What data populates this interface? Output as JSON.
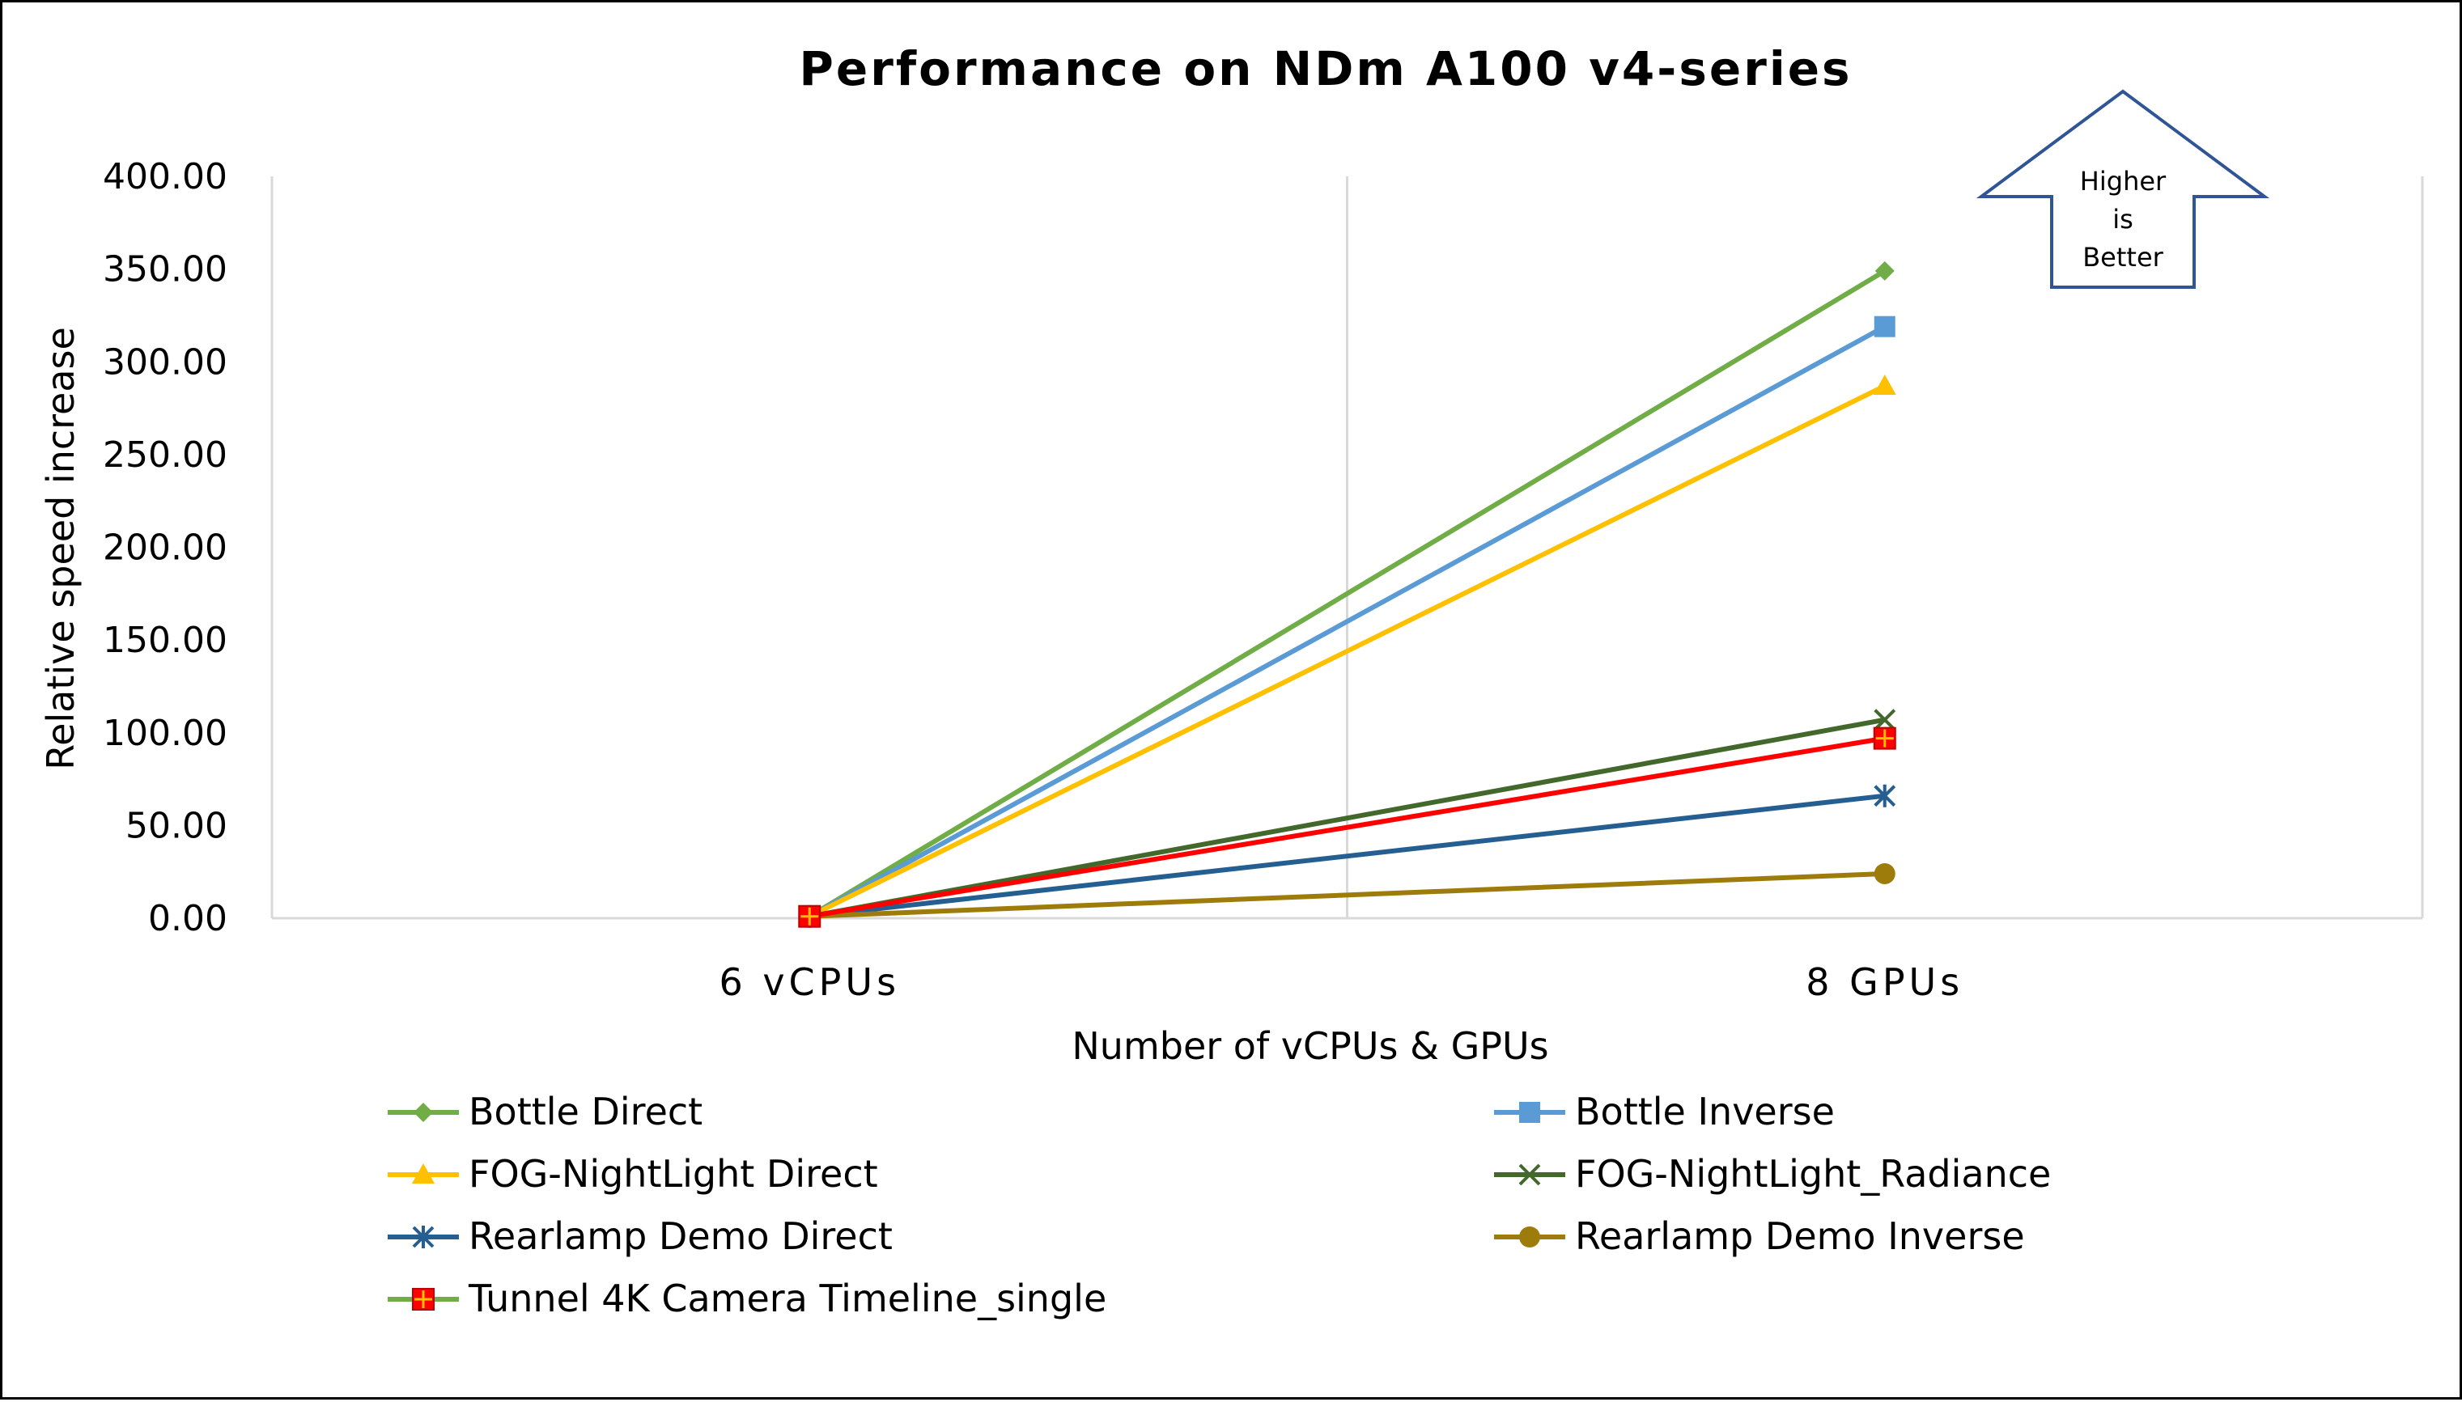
{
  "chart_data": {
    "type": "line",
    "title": "Performance on NDm A100 v4-series",
    "xlabel": "Number of vCPUs & GPUs",
    "ylabel": "Relative speed increase",
    "categories": [
      "6 vCPUs",
      "8 GPUs"
    ],
    "ylim": [
      0,
      400
    ],
    "yticks": [
      "0.00",
      "50.00",
      "100.00",
      "150.00",
      "200.00",
      "250.00",
      "300.00",
      "350.00",
      "400.00"
    ],
    "grid": "vertical",
    "legend_position": "bottom",
    "series": [
      {
        "name": "Bottle Direct",
        "values": [
          1,
          349
        ],
        "color": "#70AD47",
        "marker": "diamond"
      },
      {
        "name": "Bottle Inverse",
        "values": [
          1,
          319
        ],
        "color": "#5B9BD5",
        "marker": "square"
      },
      {
        "name": "FOG-NightLight Direct",
        "values": [
          1,
          287
        ],
        "color": "#FFC000",
        "marker": "triangle"
      },
      {
        "name": "FOG-NightLight_Radiance",
        "values": [
          1,
          107
        ],
        "color": "#43682B",
        "marker": "x"
      },
      {
        "name": "Rearlamp Demo Direct",
        "values": [
          1,
          66
        ],
        "color": "#255E91",
        "marker": "star"
      },
      {
        "name": "Rearlamp Demo Inverse",
        "values": [
          1,
          24
        ],
        "color": "#9E7C0C",
        "marker": "circle"
      },
      {
        "name": "Tunnel 4K Camera Timeline_single",
        "values": [
          1,
          97
        ],
        "color": "#FF0000",
        "line_color": "#FF0000",
        "legend_line_color": "#70AD47",
        "marker": "plus-square"
      }
    ],
    "annotation": {
      "lines": [
        "Higher",
        "is",
        "Better"
      ],
      "shape": "up-arrow",
      "color": "#2F5597"
    }
  }
}
